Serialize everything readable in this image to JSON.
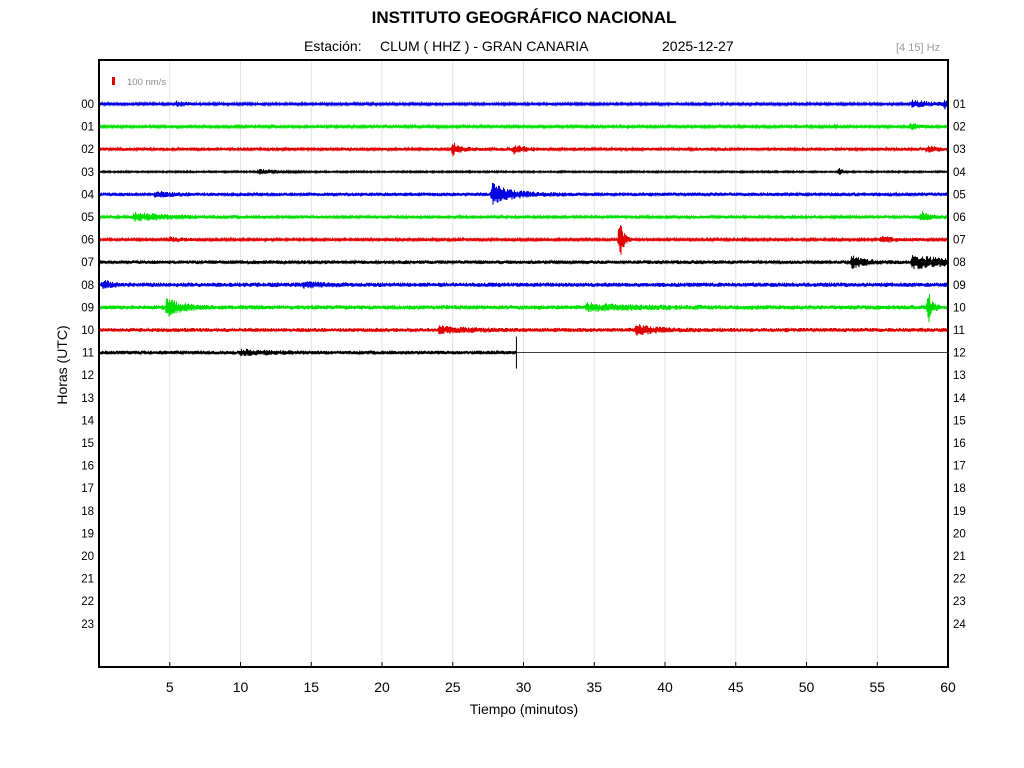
{
  "chart_data": {
    "type": "line",
    "title": "INSTITUTO GEOGRÁFICO NACIONAL",
    "station_label": "Estación:",
    "station": "CLUM ( HHZ ) - GRAN CANARIA",
    "date": "2025-12-27",
    "filter": "[4 15] Hz",
    "scale_bar_label": "100 nm/s",
    "xlabel": "Tiempo (minutos)",
    "ylabel": "Horas (UTC)",
    "xlim": [
      0,
      60
    ],
    "x_ticks": [
      5,
      10,
      15,
      20,
      25,
      30,
      35,
      40,
      45,
      50,
      55,
      60
    ],
    "grid": true,
    "left_hour_labels": [
      "00",
      "01",
      "02",
      "03",
      "04",
      "05",
      "06",
      "07",
      "08",
      "09",
      "10",
      "11",
      "12",
      "13",
      "14",
      "15",
      "16",
      "17",
      "18",
      "19",
      "20",
      "21",
      "22",
      "23"
    ],
    "right_hour_labels": [
      "01",
      "02",
      "03",
      "04",
      "05",
      "06",
      "07",
      "08",
      "09",
      "10",
      "11",
      "12",
      "13",
      "14",
      "15",
      "16",
      "17",
      "18",
      "19",
      "20",
      "21",
      "22",
      "23",
      "24"
    ],
    "trace_colors": [
      "#0000e0",
      "#00e000",
      "#e00000",
      "#000000"
    ],
    "scale_bar_color": "#e00000",
    "traces": [
      {
        "hour": "00",
        "color": "#0000e0",
        "noise": 1.2,
        "end_minute": 60,
        "events": [
          {
            "t": 5.5,
            "amp": 3,
            "dur": 0.6
          },
          {
            "t": 57.5,
            "amp": 3.5,
            "dur": 1.5
          },
          {
            "t": 59.8,
            "amp": 4,
            "dur": 0.3
          }
        ]
      },
      {
        "hour": "01",
        "color": "#00e000",
        "noise": 1.2,
        "end_minute": 60,
        "events": [
          {
            "t": 52,
            "amp": 2.5,
            "dur": 0.3
          },
          {
            "t": 57.3,
            "amp": 3,
            "dur": 0.8
          }
        ]
      },
      {
        "hour": "02",
        "color": "#e00000",
        "noise": 1.5,
        "end_minute": 60,
        "events": [
          {
            "t": 25.0,
            "amp": 6,
            "dur": 0.6
          },
          {
            "t": 29.3,
            "amp": 4,
            "dur": 0.8
          },
          {
            "t": 58.5,
            "amp": 3,
            "dur": 0.8
          }
        ]
      },
      {
        "hour": "03",
        "color": "#000000",
        "noise": 0.8,
        "end_minute": 60,
        "events": [
          {
            "t": 11.3,
            "amp": 2.5,
            "dur": 1.2
          },
          {
            "t": 52.3,
            "amp": 5,
            "dur": 0.2
          }
        ]
      },
      {
        "hour": "04",
        "color": "#0000e0",
        "noise": 1.8,
        "end_minute": 60,
        "events": [
          {
            "t": 27.8,
            "amp": 10,
            "dur": 1.3
          },
          {
            "t": 4.0,
            "amp": 2.5,
            "dur": 1.0
          }
        ]
      },
      {
        "hour": "05",
        "color": "#00e000",
        "noise": 1.6,
        "end_minute": 60,
        "events": [
          {
            "t": 2.5,
            "amp": 3.5,
            "dur": 2.5
          },
          {
            "t": 58.1,
            "amp": 5,
            "dur": 0.5
          }
        ]
      },
      {
        "hour": "06",
        "color": "#e00000",
        "noise": 1.3,
        "end_minute": 60,
        "events": [
          {
            "t": 36.8,
            "amp": 22,
            "dur": 0.25
          },
          {
            "t": 55.3,
            "amp": 3,
            "dur": 1.0
          },
          {
            "t": 5.0,
            "amp": 2,
            "dur": 1.0
          }
        ]
      },
      {
        "hour": "07",
        "color": "#000000",
        "noise": 1.8,
        "end_minute": 60,
        "events": [
          {
            "t": 53.2,
            "amp": 6,
            "dur": 0.9
          },
          {
            "t": 57.5,
            "amp": 6,
            "dur": 3.0
          }
        ]
      },
      {
        "hour": "08",
        "color": "#0000e0",
        "noise": 2.2,
        "end_minute": 60,
        "events": [
          {
            "t": 0.3,
            "amp": 5,
            "dur": 0.4
          },
          {
            "t": 14.5,
            "amp": 2.5,
            "dur": 1.0
          }
        ]
      },
      {
        "hour": "09",
        "color": "#00e000",
        "noise": 2.2,
        "end_minute": 60,
        "events": [
          {
            "t": 4.8,
            "amp": 9,
            "dur": 0.9
          },
          {
            "t": 58.6,
            "amp": 16,
            "dur": 0.25
          },
          {
            "t": 34.5,
            "amp": 3,
            "dur": 3.0
          }
        ]
      },
      {
        "hour": "10",
        "color": "#e00000",
        "noise": 2.0,
        "end_minute": 60,
        "events": [
          {
            "t": 38.0,
            "amp": 5,
            "dur": 1.2
          },
          {
            "t": 24.0,
            "amp": 3,
            "dur": 2.0
          }
        ]
      },
      {
        "hour": "11",
        "color": "#000000",
        "noise": 1.8,
        "end_minute": 29.5,
        "events": [
          {
            "t": 10.0,
            "amp": 2.5,
            "dur": 2.0
          }
        ]
      }
    ]
  }
}
